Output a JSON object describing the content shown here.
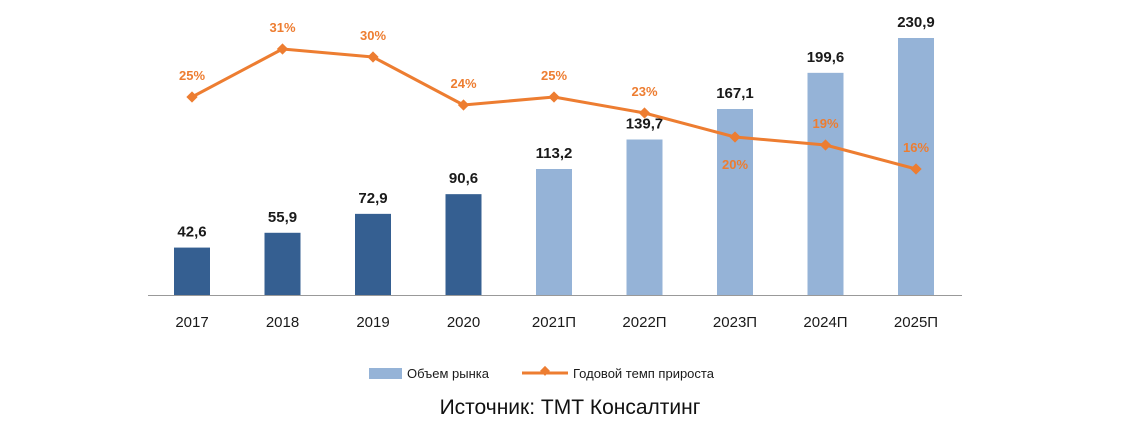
{
  "chart_data": {
    "type": "bar",
    "categories": [
      "2017",
      "2018",
      "2019",
      "2020",
      "2021П",
      "2022П",
      "2023П",
      "2024П",
      "2025П"
    ],
    "series": [
      {
        "name": "Объем рынка",
        "type": "bar",
        "values": [
          42.6,
          55.9,
          72.9,
          90.6,
          113.2,
          139.7,
          167.1,
          199.6,
          230.9
        ],
        "value_labels": [
          "42,6",
          "55,9",
          "72,9",
          "90,6",
          "113,2",
          "139,7",
          "167,1",
          "199,6",
          "230,9"
        ],
        "colors": [
          "#355f91",
          "#355f91",
          "#355f91",
          "#355f91",
          "#95b3d7",
          "#95b3d7",
          "#95b3d7",
          "#95b3d7",
          "#95b3d7"
        ]
      },
      {
        "name": "Годовой темп прироста",
        "type": "line",
        "values": [
          25,
          31,
          30,
          24,
          25,
          23,
          20,
          19,
          16
        ],
        "value_labels": [
          "25%",
          "31%",
          "30%",
          "24%",
          "25%",
          "23%",
          "20%",
          "19%",
          "16%"
        ],
        "color": "#ed7d31"
      }
    ],
    "ylim": [
      0,
      235
    ],
    "y2lim": [
      0,
      35
    ],
    "grid": false,
    "legend_position": "bottom"
  },
  "source": "Источник: ТМТ Консалтинг"
}
